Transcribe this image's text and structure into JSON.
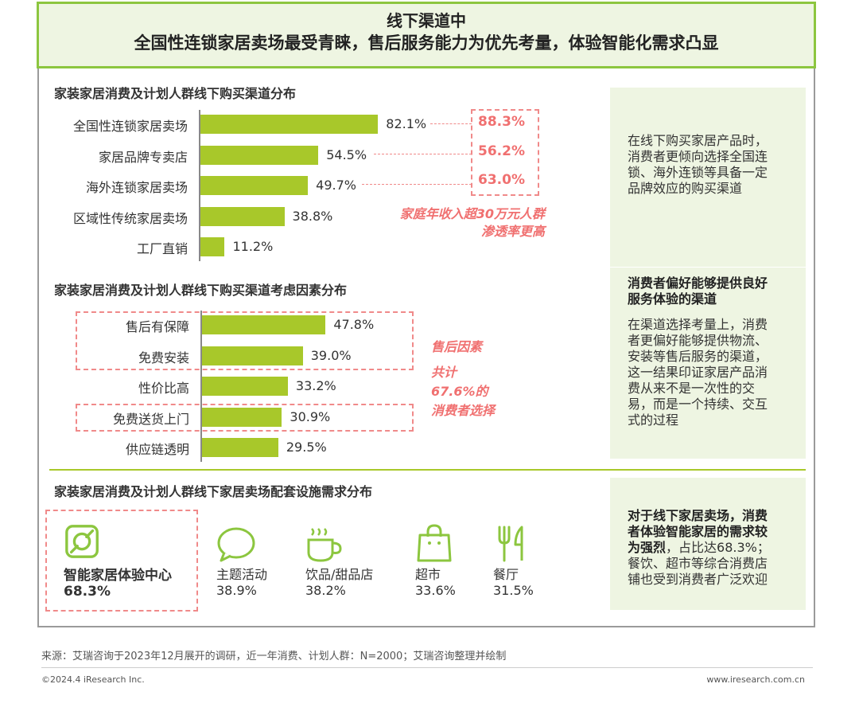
{
  "header": {
    "title": "线下渠道中",
    "subtitle": "全国性连锁家居卖场最受青睐，售后服务能力为优先考量，体验智能化需求凸显"
  },
  "colors": {
    "bar": "#a8c82a",
    "accent_border": "#8cc63f",
    "highlight": "#f07070",
    "side_bg": "#eef5e2"
  },
  "chart_data": [
    {
      "type": "bar",
      "orientation": "horizontal",
      "title": "家装家居消费及计划人群线下购买渠道分布",
      "categories": [
        "全国性连锁家居卖场",
        "家居品牌专卖店",
        "海外连锁家居卖场",
        "区域性传统家居卖场",
        "工厂直销"
      ],
      "values": [
        82.1,
        54.5,
        49.7,
        38.8,
        11.2
      ],
      "value_labels": [
        "82.1%",
        "54.5%",
        "49.7%",
        "38.8%",
        "11.2%"
      ],
      "highlight_values": [
        "88.3%",
        "56.2%",
        "63.0%"
      ],
      "annotation": [
        "家庭年收入超30万元人群",
        "渗透率更高"
      ]
    },
    {
      "type": "bar",
      "orientation": "horizontal",
      "title": "家装家居消费及计划人群线下购买渠道考虑因素分布",
      "categories": [
        "售后有保障",
        "免费安装",
        "性价比高",
        "免费送货上门",
        "供应链透明"
      ],
      "values": [
        47.8,
        39.0,
        33.2,
        30.9,
        29.5
      ],
      "value_labels": [
        "47.8%",
        "39.0%",
        "33.2%",
        "30.9%",
        "29.5%"
      ],
      "annotation": [
        "售后因素",
        "共计",
        "67.6%的",
        "消费者选择"
      ]
    },
    {
      "type": "table",
      "title": "家装家居消费及计划人群线下家居卖场配套设施需求分布",
      "items": [
        {
          "label": "智能家居体验中心",
          "value": "68.3%",
          "icon": "smart-home-icon"
        },
        {
          "label": "主题活动",
          "value": "38.9%",
          "icon": "speech-bubble-icon"
        },
        {
          "label": "饮品/甜品店",
          "value": "38.2%",
          "icon": "coffee-cup-icon"
        },
        {
          "label": "超市",
          "value": "33.6%",
          "icon": "shopping-bag-icon"
        },
        {
          "label": "餐厅",
          "value": "31.5%",
          "icon": "fork-knife-icon"
        }
      ]
    }
  ],
  "side": {
    "box1": [
      "在线下购买家居产品时，",
      "消费者更倾向选择全国连",
      "锁、海外连锁等具备一定",
      "品牌效应的购买渠道"
    ],
    "box2_title": [
      "消费者偏好能够提供良好",
      "服务体验的渠道"
    ],
    "box2_text": [
      "在渠道选择考量上，消费",
      "者更偏好能够提供物流、",
      "安装等售后服务的渠道，",
      "这一结果印证家居产品消",
      "费从来不是一次性的交",
      "易，而是一个持续、交互",
      "式的过程"
    ],
    "box3_bold": [
      "对于线下家居卖场，消费",
      "者体验智能家居的需求较",
      "为强烈"
    ],
    "box3_rest1": "，占比达68.3%；",
    "box3_text": [
      "餐饮、超市等综合消费店",
      "铺也受到消费者广泛欢迎"
    ]
  },
  "footer": {
    "source": "来源：艾瑞咨询于2023年12月展开的调研，近一年消费、计划人群：N=2000；艾瑞咨询整理并绘制",
    "copyright": "©2024.4 iResearch Inc.",
    "website": "www.iresearch.com.cn"
  }
}
